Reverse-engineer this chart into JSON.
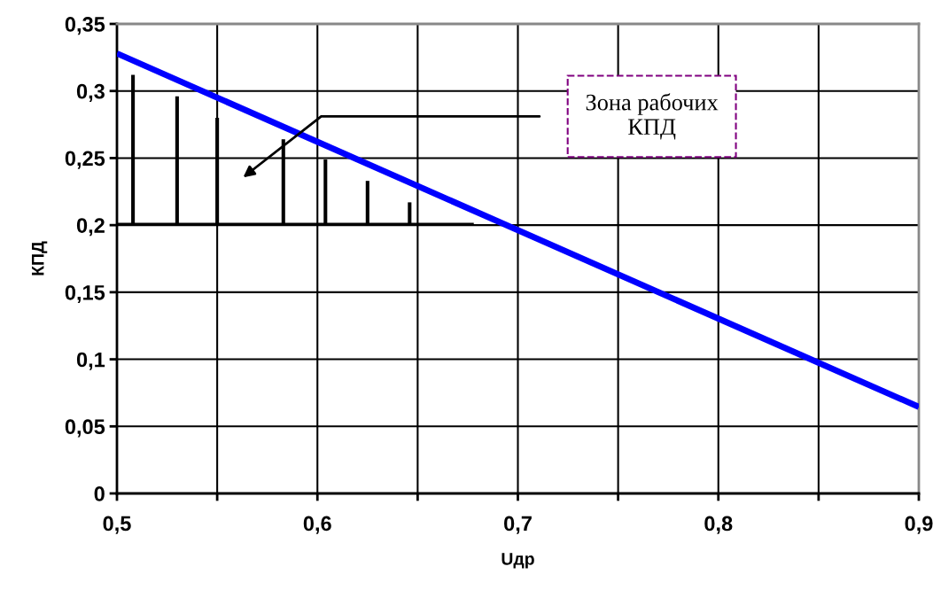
{
  "chart_data": {
    "type": "line",
    "xlabel": "Uдр",
    "ylabel": "КПД",
    "xlim": [
      0.5,
      0.9
    ],
    "ylim": [
      0,
      0.35
    ],
    "xticks": [
      {
        "value": 0.5,
        "label": "0,5"
      },
      {
        "value": 0.55,
        "label": null
      },
      {
        "value": 0.6,
        "label": "0,6"
      },
      {
        "value": 0.65,
        "label": null
      },
      {
        "value": 0.7,
        "label": "0,7"
      },
      {
        "value": 0.75,
        "label": null
      },
      {
        "value": 0.8,
        "label": "0,8"
      },
      {
        "value": 0.85,
        "label": null
      },
      {
        "value": 0.9,
        "label": "0,9"
      }
    ],
    "yticks": [
      0,
      {
        "value": 0.05,
        "label": "0,05"
      },
      {
        "value": 0.1,
        "label": "0,1"
      },
      {
        "value": 0.15,
        "label": "0,15"
      },
      {
        "value": 0.2,
        "label": "0,2"
      },
      {
        "value": 0.25,
        "label": "0,25"
      },
      {
        "value": 0.3,
        "label": "0,3"
      },
      {
        "value": 0.35,
        "label": "0,35"
      }
    ],
    "grid": true,
    "legend": false,
    "series": [
      {
        "color": "#0000ff",
        "x": [
          0.5,
          0.9
        ],
        "values": [
          0.328,
          0.0645
        ]
      },
      {
        "type": "bar",
        "color": "#000000",
        "x": [
          0.508,
          0.53,
          0.55,
          0.583,
          0.604,
          0.625,
          0.646
        ],
        "base": [
          0.2,
          0.2,
          0.2,
          0.2,
          0.2,
          0.2,
          0.2
        ],
        "values": [
          0.112,
          0.096,
          0.08,
          0.064,
          0.049,
          0.033,
          0.017
        ]
      },
      {
        "type": "line",
        "color": "#000000",
        "x": [
          0.5,
          0.678
        ],
        "values": [
          0.201,
          0.201
        ]
      }
    ],
    "annotations": [
      "Зона рабочих\nКПД"
    ]
  }
}
